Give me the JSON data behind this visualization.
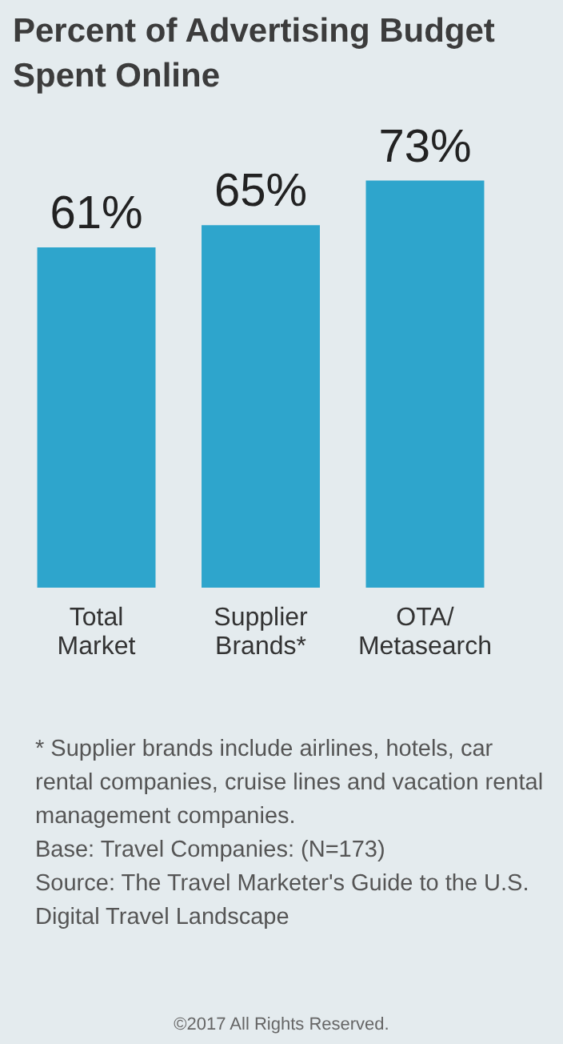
{
  "chart_data": {
    "type": "bar",
    "title": "Percent of Advertising Budget Spent Online",
    "categories": [
      "Total Market",
      "Supplier Brands*",
      "OTA/ Metasearch"
    ],
    "values": [
      61,
      65,
      73
    ],
    "value_labels": [
      "61%",
      "65%",
      "73%"
    ],
    "color": "#2ea5cc",
    "annotations": [
      "* Supplier brands include airlines, hotels, car rental companies, cruise lines and vacation rental management companies.",
      "Base: Travel Companies: (N=173)",
      "Source: The Travel Marketer's Guide to the U.S. Digital Travel Landscape",
      "©2017 All Rights Reserved."
    ]
  }
}
